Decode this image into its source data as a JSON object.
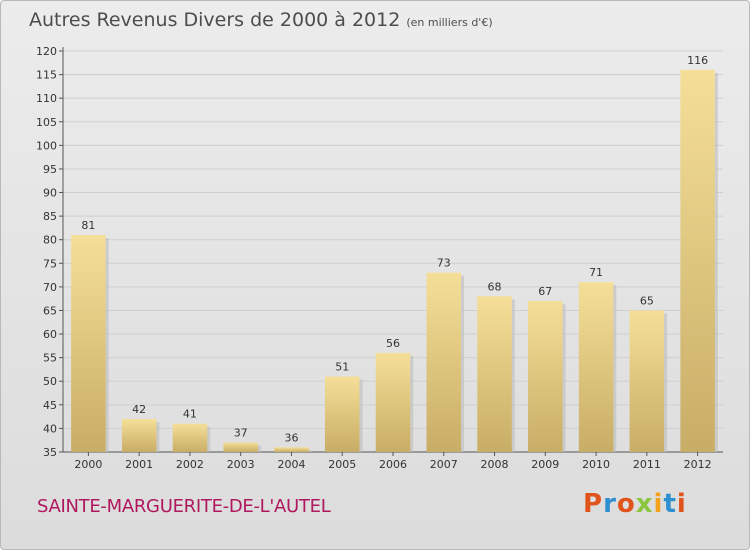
{
  "header": {
    "title": "Autres Revenus Divers de 2000 à 2012",
    "unit": "(en milliers d'€)"
  },
  "footer": {
    "place": "SAINTE-MARGUERITE-DE-L'AUTEL",
    "logo_text": "Proxiti",
    "logo_colors": [
      "#e0541c",
      "#2e8fd0",
      "#e0541c",
      "#8cc63f",
      "#f4a11d",
      "#2e8fd0",
      "#e0541c"
    ]
  },
  "chart_data": {
    "type": "bar",
    "categories": [
      "2000",
      "2001",
      "2002",
      "2003",
      "2004",
      "2005",
      "2006",
      "2007",
      "2008",
      "2009",
      "2010",
      "2011",
      "2012"
    ],
    "values": [
      81,
      42,
      41,
      37,
      36,
      51,
      56,
      73,
      68,
      67,
      71,
      65,
      116
    ],
    "ylim": [
      35,
      120
    ],
    "yticks": [
      35,
      40,
      45,
      50,
      55,
      60,
      65,
      70,
      75,
      80,
      85,
      90,
      95,
      100,
      105,
      110,
      115,
      120
    ],
    "grid": true,
    "bar_color_light": "#f5df98",
    "bar_color_dark": "#c8ad66"
  }
}
